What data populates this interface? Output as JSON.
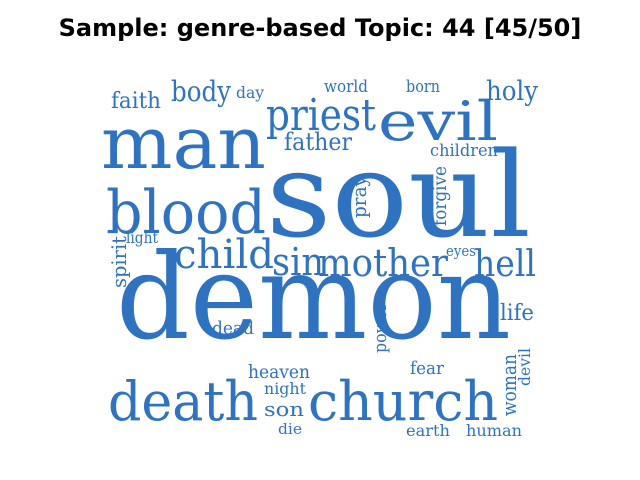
{
  "title": "Sample: genre-based Topic: 44 [45/50]",
  "colors": {
    "word": "#2f73c0",
    "background": "#ffffff",
    "title": "#000000"
  },
  "words": [
    "demon",
    "soul",
    "man",
    "blood",
    "death",
    "church",
    "priest",
    "evil",
    "child",
    "sin",
    "mother",
    "hell",
    "faith",
    "body",
    "day",
    "world",
    "born",
    "holy",
    "father",
    "children",
    "pray",
    "forgive",
    "spirit",
    "light",
    "eyes",
    "life",
    "dead",
    "power",
    "woman",
    "devil",
    "heaven",
    "night",
    "fear",
    "son",
    "die",
    "earth",
    "human"
  ]
}
